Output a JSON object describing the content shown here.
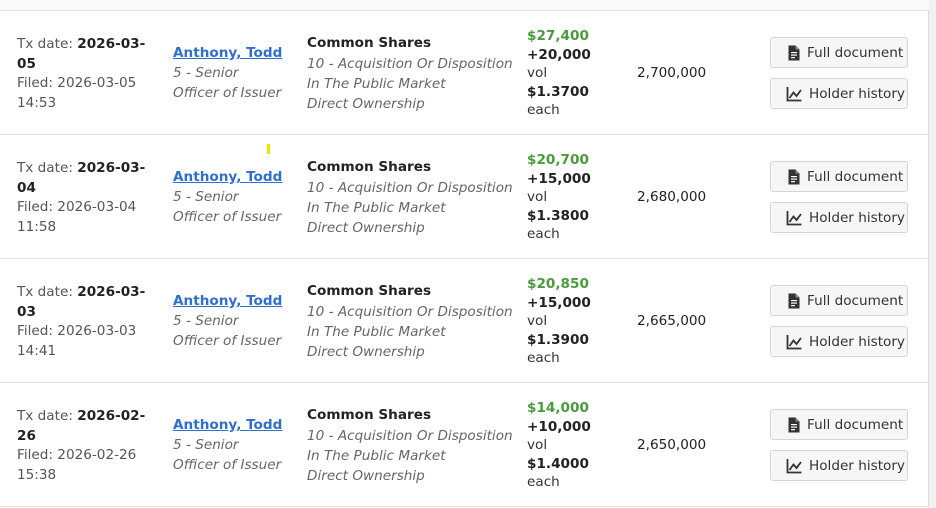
{
  "labels": {
    "tx_date": "Tx date:",
    "filed": "Filed:",
    "vol": "vol",
    "each": "each",
    "full_document": "Full document",
    "holder_history": "Holder history"
  },
  "rows": [
    {
      "tx_date_a": "2026-03-",
      "tx_date_b": "05",
      "filed_date": "2026-03-05",
      "filed_time": "14:53",
      "owner_name": "Anthony, Todd",
      "owner_role_a": "5 - Senior",
      "owner_role_b": "Officer of Issuer",
      "security": "Common Shares",
      "code_a": "10 - Acquisition Or Disposition",
      "code_b": "In The Public Market",
      "ownership": "Direct Ownership",
      "value": "$27,400",
      "volume": "+20,000",
      "price": "$1.3700",
      "holdings": "2,700,000"
    },
    {
      "tx_date_a": "2026-03-",
      "tx_date_b": "04",
      "filed_date": "2026-03-04",
      "filed_time": "11:58",
      "owner_name": "Anthony, Todd",
      "owner_role_a": "5 - Senior",
      "owner_role_b": "Officer of Issuer",
      "security": "Common Shares",
      "code_a": "10 - Acquisition Or Disposition",
      "code_b": "In The Public Market",
      "ownership": "Direct Ownership",
      "value": "$20,700",
      "volume": "+15,000",
      "price": "$1.3800",
      "holdings": "2,680,000"
    },
    {
      "tx_date_a": "2026-03-",
      "tx_date_b": "03",
      "filed_date": "2026-03-03",
      "filed_time": "14:41",
      "owner_name": "Anthony, Todd",
      "owner_role_a": "5 - Senior",
      "owner_role_b": "Officer of Issuer",
      "security": "Common Shares",
      "code_a": "10 - Acquisition Or Disposition",
      "code_b": "In The Public Market",
      "ownership": "Direct Ownership",
      "value": "$20,850",
      "volume": "+15,000",
      "price": "$1.3900",
      "holdings": "2,665,000"
    },
    {
      "tx_date_a": "2026-02-",
      "tx_date_b": "26",
      "filed_date": "2026-02-26",
      "filed_time": "15:38",
      "owner_name": "Anthony, Todd",
      "owner_role_a": "5 - Senior",
      "owner_role_b": "Officer of Issuer",
      "security": "Common Shares",
      "code_a": "10 - Acquisition Or Disposition",
      "code_b": "In The Public Market",
      "ownership": "Direct Ownership",
      "value": "$14,000",
      "volume": "+10,000",
      "price": "$1.4000",
      "holdings": "2,650,000"
    }
  ],
  "icons": {
    "document": "document-icon",
    "chart": "line-chart-icon"
  },
  "colors": {
    "link": "#2e6fd1",
    "value_green": "#4a9b3d"
  }
}
